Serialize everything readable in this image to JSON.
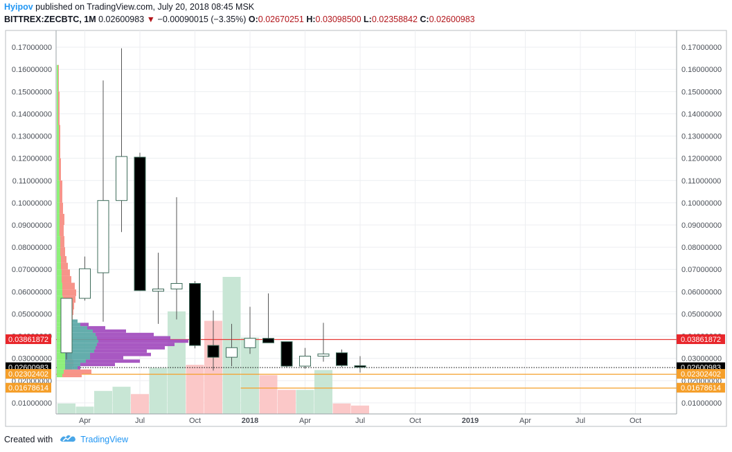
{
  "header": {
    "author": "Hyipov",
    "published": "published on TradingView.com, July 20, 2018 08:45 MSK",
    "symbol": "BITTREX:ZECBTC, 1M",
    "last": "0.02600983",
    "change": "−0.00090015 (−3.35%)",
    "open_label": "O:",
    "open": "0.02670251",
    "high_label": "H:",
    "high": "0.03098500",
    "low_label": "L:",
    "low": "0.02358842",
    "close_label": "C:",
    "close": "0.02600983"
  },
  "footer": {
    "created_with": "Created with",
    "brand": "TradingView"
  },
  "colors": {
    "up_fill": "#ffffff",
    "down_fill": "#000000",
    "candle_border": "#3d6b5a",
    "vol_up": "#c8e6d5",
    "vol_down": "#fbc8c8",
    "res_line": "#e53935",
    "sup_line": "#f59f2a",
    "last_tag": "#000000",
    "vp_green": "#8ef07a",
    "vp_red": "#f7948a",
    "vp_teal": "#5ca9a8",
    "vp_purple": "#a34fbf"
  },
  "chart_data": {
    "type": "candlestick",
    "y_axis": {
      "min": 0.005,
      "max": 0.1775,
      "ticks": [
        "0.01000000",
        "0.02000000",
        "0.03000000",
        "0.04000000",
        "0.05000000",
        "0.06000000",
        "0.07000000",
        "0.08000000",
        "0.09000000",
        "0.10000000",
        "0.11000000",
        "0.12000000",
        "0.13000000",
        "0.14000000",
        "0.15000000",
        "0.16000000",
        "0.17000000"
      ]
    },
    "x_axis": {
      "labels": [
        {
          "text": "Apr",
          "idx": 1,
          "bold": false
        },
        {
          "text": "Jul",
          "idx": 4,
          "bold": false
        },
        {
          "text": "Oct",
          "idx": 7,
          "bold": false
        },
        {
          "text": "2018",
          "idx": 10,
          "bold": true
        },
        {
          "text": "Apr",
          "idx": 13,
          "bold": false
        },
        {
          "text": "Jul",
          "idx": 16,
          "bold": false
        },
        {
          "text": "Oct",
          "idx": 19,
          "bold": false
        },
        {
          "text": "2019",
          "idx": 22,
          "bold": true
        },
        {
          "text": "Apr",
          "idx": 25,
          "bold": false
        },
        {
          "text": "Jul",
          "idx": 28,
          "bold": false
        },
        {
          "text": "Oct",
          "idx": 31,
          "bold": false
        }
      ]
    },
    "candles": [
      {
        "date": "2017-02",
        "o": 0.0325,
        "h": 0.0555,
        "l": 0.0295,
        "c": 0.057
      },
      {
        "date": "2017-03",
        "o": 0.057,
        "h": 0.0758,
        "l": 0.056,
        "c": 0.0703
      },
      {
        "date": "2017-04",
        "o": 0.0685,
        "h": 0.155,
        "l": 0.0465,
        "c": 0.101
      },
      {
        "date": "2017-05",
        "o": 0.101,
        "h": 0.1695,
        "l": 0.0868,
        "c": 0.1208
      },
      {
        "date": "2017-06",
        "o": 0.1205,
        "h": 0.1225,
        "l": 0.0603,
        "c": 0.0605
      },
      {
        "date": "2017-07",
        "o": 0.0602,
        "h": 0.0775,
        "l": 0.0455,
        "c": 0.0612
      },
      {
        "date": "2017-08",
        "o": 0.0612,
        "h": 0.1025,
        "l": 0.0475,
        "c": 0.0637
      },
      {
        "date": "2017-09",
        "o": 0.0637,
        "h": 0.0648,
        "l": 0.0345,
        "c": 0.0358
      },
      {
        "date": "2017-10",
        "o": 0.0358,
        "h": 0.0515,
        "l": 0.0245,
        "c": 0.0305
      },
      {
        "date": "2017-11",
        "o": 0.0305,
        "h": 0.0455,
        "l": 0.0265,
        "c": 0.0348
      },
      {
        "date": "2017-12",
        "o": 0.0348,
        "h": 0.0532,
        "l": 0.032,
        "c": 0.039
      },
      {
        "date": "2018-01",
        "o": 0.039,
        "h": 0.0592,
        "l": 0.037,
        "c": 0.037
      },
      {
        "date": "2018-02",
        "o": 0.0375,
        "h": 0.0375,
        "l": 0.026,
        "c": 0.0265
      },
      {
        "date": "2018-03",
        "o": 0.0265,
        "h": 0.0347,
        "l": 0.0253,
        "c": 0.031
      },
      {
        "date": "2018-04",
        "o": 0.031,
        "h": 0.046,
        "l": 0.0285,
        "c": 0.032
      },
      {
        "date": "2018-05",
        "o": 0.0325,
        "h": 0.034,
        "l": 0.026,
        "c": 0.0268
      },
      {
        "date": "2018-06",
        "o": 0.02670251,
        "h": 0.030985,
        "l": 0.02358842,
        "c": 0.02600983
      }
    ],
    "volume": [
      {
        "idx": 0,
        "v": 0.1,
        "up": true
      },
      {
        "idx": 1,
        "v": 0.07,
        "up": true
      },
      {
        "idx": 2,
        "v": 0.22,
        "up": true
      },
      {
        "idx": 3,
        "v": 0.26,
        "up": true
      },
      {
        "idx": 4,
        "v": 0.19,
        "up": false
      },
      {
        "idx": 5,
        "v": 0.44,
        "up": true
      },
      {
        "idx": 6,
        "v": 0.98,
        "up": true
      },
      {
        "idx": 7,
        "v": 0.47,
        "up": false
      },
      {
        "idx": 8,
        "v": 0.89,
        "up": false
      },
      {
        "idx": 9,
        "v": 1.31,
        "up": true
      },
      {
        "idx": 10,
        "v": 0.73,
        "up": true
      },
      {
        "idx": 11,
        "v": 0.37,
        "up": false
      },
      {
        "idx": 12,
        "v": 0.23,
        "up": false
      },
      {
        "idx": 13,
        "v": 0.23,
        "up": true
      },
      {
        "idx": 14,
        "v": 0.42,
        "up": true
      },
      {
        "idx": 15,
        "v": 0.1,
        "up": false
      },
      {
        "idx": 16,
        "v": 0.08,
        "up": false
      }
    ],
    "levels": [
      {
        "name": "resistance",
        "value": 0.03861872,
        "label": "0.03861872",
        "color": "#e53935",
        "tag_color": "#e8262b",
        "from_idx": 0
      },
      {
        "name": "last",
        "value": 0.02600983,
        "label": "0.02600983",
        "color": "#000000",
        "tag_color": "#000000",
        "from_idx": 0,
        "dotted": true
      },
      {
        "name": "support-1",
        "value": 0.02302402,
        "label": "0.02302402",
        "color": "#f59f2a",
        "tag_color": "#f59f2a",
        "from_idx": 0
      },
      {
        "name": "support-2",
        "value": 0.01678614,
        "label": "0.01678614",
        "color": "#f59f2a",
        "tag_color": "#f59f2a",
        "from_idx": 9.5
      }
    ],
    "volume_profile": [
      {
        "from": 0.0215,
        "to": 0.023,
        "g": 8,
        "r": 28,
        "t": 0,
        "p": 0
      },
      {
        "from": 0.023,
        "to": 0.025,
        "g": 10,
        "r": 40,
        "t": 0,
        "p": 0
      },
      {
        "from": 0.025,
        "to": 0.0265,
        "g": 12,
        "r": 10,
        "t": 18,
        "p": 16
      },
      {
        "from": 0.0265,
        "to": 0.028,
        "g": 12,
        "r": 12,
        "t": 22,
        "p": 62
      },
      {
        "from": 0.028,
        "to": 0.0295,
        "g": 12,
        "r": 12,
        "t": 30,
        "p": 90
      },
      {
        "from": 0.0295,
        "to": 0.031,
        "g": 12,
        "r": 10,
        "t": 36,
        "p": 60
      },
      {
        "from": 0.031,
        "to": 0.0325,
        "g": 12,
        "r": 10,
        "t": 36,
        "p": 100
      },
      {
        "from": 0.0325,
        "to": 0.034,
        "g": 12,
        "r": 10,
        "t": 42,
        "p": 88
      },
      {
        "from": 0.034,
        "to": 0.0355,
        "g": 12,
        "r": 10,
        "t": 44,
        "p": 112
      },
      {
        "from": 0.0355,
        "to": 0.037,
        "g": 12,
        "r": 10,
        "t": 46,
        "p": 124
      },
      {
        "from": 0.037,
        "to": 0.0385,
        "g": 12,
        "r": 10,
        "t": 48,
        "p": 142
      },
      {
        "from": 0.0385,
        "to": 0.04,
        "g": 12,
        "r": 10,
        "t": 46,
        "p": 118
      },
      {
        "from": 0.04,
        "to": 0.0415,
        "g": 12,
        "r": 10,
        "t": 44,
        "p": 96
      },
      {
        "from": 0.0415,
        "to": 0.043,
        "g": 12,
        "r": 10,
        "t": 40,
        "p": 60
      },
      {
        "from": 0.043,
        "to": 0.0445,
        "g": 12,
        "r": 10,
        "t": 32,
        "p": 38
      },
      {
        "from": 0.0445,
        "to": 0.046,
        "g": 12,
        "r": 10,
        "t": 22,
        "p": 24
      },
      {
        "from": 0.046,
        "to": 0.0475,
        "g": 12,
        "r": 10,
        "t": 18,
        "p": 12
      },
      {
        "from": 0.0475,
        "to": 0.0495,
        "g": 11,
        "r": 12,
        "t": 0,
        "p": 0
      },
      {
        "from": 0.0495,
        "to": 0.052,
        "g": 10,
        "r": 14,
        "t": 0,
        "p": 0
      },
      {
        "from": 0.052,
        "to": 0.055,
        "g": 9,
        "r": 16,
        "t": 0,
        "p": 0
      },
      {
        "from": 0.055,
        "to": 0.058,
        "g": 9,
        "r": 18,
        "t": 0,
        "p": 0
      },
      {
        "from": 0.058,
        "to": 0.061,
        "g": 8,
        "r": 20,
        "t": 0,
        "p": 0
      },
      {
        "from": 0.061,
        "to": 0.064,
        "g": 8,
        "r": 18,
        "t": 0,
        "p": 0
      },
      {
        "from": 0.064,
        "to": 0.067,
        "g": 7,
        "r": 14,
        "t": 0,
        "p": 0
      },
      {
        "from": 0.067,
        "to": 0.07,
        "g": 7,
        "r": 12,
        "t": 0,
        "p": 0
      },
      {
        "from": 0.07,
        "to": 0.073,
        "g": 6,
        "r": 10,
        "t": 0,
        "p": 0
      },
      {
        "from": 0.073,
        "to": 0.076,
        "g": 6,
        "r": 8,
        "t": 0,
        "p": 0
      },
      {
        "from": 0.076,
        "to": 0.08,
        "g": 5,
        "r": 7,
        "t": 0,
        "p": 0
      },
      {
        "from": 0.08,
        "to": 0.085,
        "g": 5,
        "r": 6,
        "t": 0,
        "p": 0
      },
      {
        "from": 0.085,
        "to": 0.09,
        "g": 4,
        "r": 6,
        "t": 0,
        "p": 0
      },
      {
        "from": 0.09,
        "to": 0.095,
        "g": 4,
        "r": 7,
        "t": 0,
        "p": 0
      },
      {
        "from": 0.095,
        "to": 0.1,
        "g": 4,
        "r": 5,
        "t": 0,
        "p": 0
      },
      {
        "from": 0.1,
        "to": 0.11,
        "g": 4,
        "r": 4,
        "t": 0,
        "p": 0
      },
      {
        "from": 0.11,
        "to": 0.12,
        "g": 3,
        "r": 3,
        "t": 0,
        "p": 0
      },
      {
        "from": 0.12,
        "to": 0.135,
        "g": 3,
        "r": 2,
        "t": 0,
        "p": 0
      },
      {
        "from": 0.135,
        "to": 0.15,
        "g": 2,
        "r": 2,
        "t": 0,
        "p": 0
      },
      {
        "from": 0.15,
        "to": 0.162,
        "g": 2,
        "r": 1,
        "t": 0,
        "p": 0
      }
    ]
  }
}
